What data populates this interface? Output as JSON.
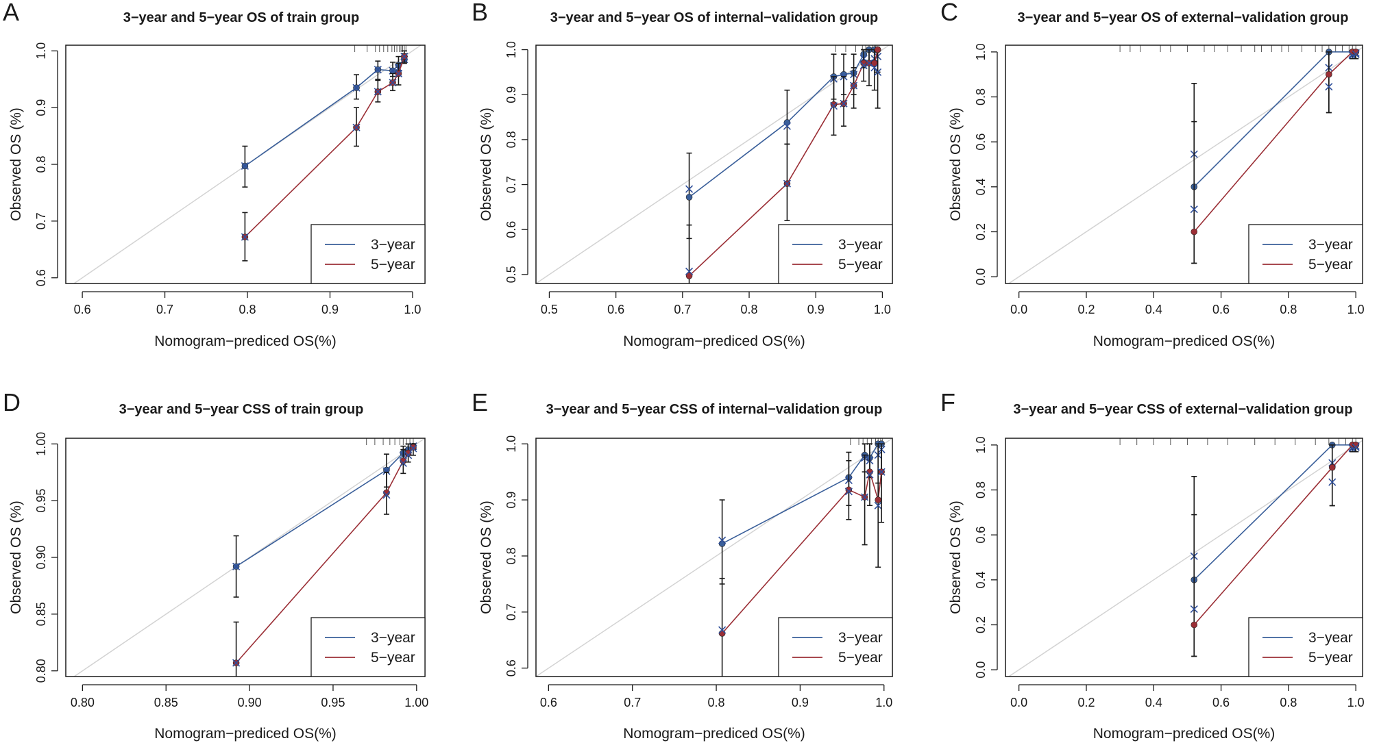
{
  "figure": {
    "colors": {
      "year3": "#3a5f9a",
      "year5": "#9b2f36",
      "ideal": "#d3d3d3",
      "errorbar": "#1a1a1a",
      "frame": "#1a1a1a"
    }
  },
  "chart_data": [
    {
      "id": "A",
      "label": "A",
      "type": "line",
      "title": "3−year and 5−year OS of train group",
      "xlabel": "Nomogram−prediced OS(%)",
      "ylabel": "Observed OS (%)",
      "xlim": [
        0.58,
        1.015
      ],
      "ylim": [
        0.59,
        1.01
      ],
      "xticks": [
        0.6,
        0.7,
        0.8,
        0.9,
        1.0
      ],
      "xtick_labels": [
        "0.6",
        "0.7",
        "0.8",
        "0.9",
        "1.0"
      ],
      "yticks": [
        0.6,
        0.7,
        0.8,
        0.9,
        1.0
      ],
      "ytick_labels": [
        "0.6",
        "0.7",
        "0.8",
        "0.9",
        "1.0"
      ],
      "legend": [
        "3−year",
        "5−year"
      ],
      "legend_position": "bottom-right",
      "rug": [
        0.93,
        0.945,
        0.955,
        0.96,
        0.965,
        0.97,
        0.975,
        0.978,
        0.981,
        0.984,
        0.986,
        0.988,
        0.99,
        0.992
      ],
      "series": [
        {
          "name": "3−year",
          "x": [
            0.797,
            0.932,
            0.958,
            0.976,
            0.983,
            0.99
          ],
          "y": [
            0.797,
            0.935,
            0.967,
            0.965,
            0.975,
            0.985
          ],
          "lo": [
            0.76,
            0.915,
            0.95,
            0.955,
            0.965,
            0.978
          ],
          "hi": [
            0.832,
            0.958,
            0.982,
            0.98,
            0.99,
            0.995
          ],
          "x_obs": [
            0.797,
            0.932,
            0.958,
            0.976,
            0.983,
            0.99
          ],
          "y_obs": [
            0.797,
            0.935,
            0.967,
            0.965,
            0.97,
            0.985
          ]
        },
        {
          "name": "5−year",
          "x": [
            0.797,
            0.932,
            0.958,
            0.976,
            0.983,
            0.99
          ],
          "y": [
            0.672,
            0.865,
            0.928,
            0.944,
            0.96,
            0.99
          ],
          "lo": [
            0.63,
            0.832,
            0.91,
            0.93,
            0.94,
            0.98
          ],
          "hi": [
            0.715,
            0.9,
            0.948,
            0.96,
            0.978,
            1.0
          ],
          "x_obs": [
            0.797,
            0.932,
            0.958,
            0.976,
            0.983,
            0.99
          ],
          "y_obs": [
            0.672,
            0.865,
            0.928,
            0.944,
            0.96,
            0.99
          ]
        }
      ]
    },
    {
      "id": "B",
      "label": "B",
      "type": "line",
      "title": "3−year and 5−year OS of internal−validation group",
      "xlabel": "Nomogram−prediced OS(%)",
      "ylabel": "Observed OS (%)",
      "xlim": [
        0.48,
        1.015
      ],
      "ylim": [
        0.48,
        1.01
      ],
      "xticks": [
        0.5,
        0.6,
        0.7,
        0.8,
        0.9,
        1.0
      ],
      "xtick_labels": [
        "0.5",
        "0.6",
        "0.7",
        "0.8",
        "0.9",
        "1.0"
      ],
      "yticks": [
        0.5,
        0.6,
        0.7,
        0.8,
        0.9,
        1.0
      ],
      "ytick_labels": [
        "0.5",
        "0.6",
        "0.7",
        "0.8",
        "0.9",
        "1.0"
      ],
      "legend": [
        "3−year",
        "5−year"
      ],
      "legend_position": "bottom-right",
      "rug": [
        0.93,
        0.945,
        0.96,
        0.97,
        0.975,
        0.98,
        0.985,
        0.988,
        0.99,
        0.992,
        0.995
      ],
      "series": [
        {
          "name": "3−year",
          "x": [
            0.71,
            0.857,
            0.927,
            0.942,
            0.957,
            0.972,
            0.98,
            0.988,
            0.993
          ],
          "y": [
            0.672,
            0.838,
            0.94,
            0.945,
            0.948,
            0.99,
            1.0,
            1.0,
            1.0
          ],
          "lo": [
            0.58,
            0.79,
            0.89,
            0.9,
            0.9,
            0.96,
            0.97,
            0.97,
            0.95
          ],
          "hi": [
            0.77,
            0.91,
            0.99,
            0.99,
            0.99,
            1.0,
            1.0,
            1.0,
            1.0
          ],
          "x_obs": [
            0.71,
            0.857,
            0.927,
            0.942,
            0.957,
            0.972,
            0.98,
            0.988,
            0.993
          ],
          "y_obs": [
            0.69,
            0.83,
            0.935,
            0.94,
            0.945,
            0.98,
            0.97,
            0.98,
            0.985
          ]
        },
        {
          "name": "5−year",
          "x": [
            0.71,
            0.857,
            0.927,
            0.942,
            0.957,
            0.972,
            0.98,
            0.988,
            0.993
          ],
          "y": [
            0.497,
            0.702,
            0.878,
            0.88,
            0.92,
            0.97,
            0.97,
            0.97,
            1.0
          ],
          "lo": [
            0.4,
            0.62,
            0.81,
            0.83,
            0.87,
            0.93,
            0.92,
            0.91,
            0.87
          ],
          "hi": [
            0.61,
            0.79,
            0.94,
            0.94,
            0.96,
            1.0,
            1.0,
            1.0,
            1.0
          ],
          "x_obs": [
            0.71,
            0.857,
            0.927,
            0.942,
            0.957,
            0.972,
            0.98,
            0.988,
            0.993
          ],
          "y_obs": [
            0.507,
            0.702,
            0.875,
            0.88,
            0.92,
            0.965,
            0.97,
            0.96,
            0.95
          ]
        }
      ]
    },
    {
      "id": "C",
      "label": "C",
      "type": "line",
      "title": "3−year and 5−year OS of external−validation group",
      "xlabel": "Nomogram−prediced OS(%)",
      "ylabel": "Observed OS (%)",
      "xlim": [
        -0.04,
        1.02
      ],
      "ylim": [
        -0.03,
        1.03
      ],
      "xticks": [
        0.0,
        0.2,
        0.4,
        0.6,
        0.8,
        1.0
      ],
      "xtick_labels": [
        "0.0",
        "0.2",
        "0.4",
        "0.6",
        "0.8",
        "1.0"
      ],
      "yticks": [
        0.0,
        0.2,
        0.4,
        0.6,
        0.8,
        1.0
      ],
      "ytick_labels": [
        "0.0",
        "0.2",
        "0.4",
        "0.6",
        "0.8",
        "1.0"
      ],
      "legend": [
        "3−year",
        "5−year"
      ],
      "legend_position": "bottom-right",
      "rug": [
        0.3,
        0.33,
        0.36,
        0.42,
        0.45,
        0.5,
        0.55,
        0.58,
        0.62,
        0.66,
        0.7,
        0.72,
        0.75,
        0.78,
        0.8,
        0.84,
        0.88,
        0.9,
        0.92,
        0.94,
        0.96,
        0.98,
        0.99,
        1.0
      ],
      "series": [
        {
          "name": "3−year",
          "x": [
            0.52,
            0.92,
            0.99,
            1.0
          ],
          "y": [
            0.4,
            1.0,
            1.0,
            1.0
          ],
          "lo": [
            0.06,
            0.73,
            0.97,
            0.97
          ],
          "hi": [
            0.86,
            1.0,
            1.0,
            1.0
          ],
          "x_obs": [
            0.52,
            0.92,
            0.99,
            1.0
          ],
          "y_obs": [
            0.545,
            0.93,
            0.99,
            0.995
          ]
        },
        {
          "name": "5−year",
          "x": [
            0.52,
            0.92,
            0.99,
            1.0
          ],
          "y": [
            0.2,
            0.9,
            1.0,
            1.0
          ],
          "lo": [
            0.06,
            0.73,
            0.97,
            0.97
          ],
          "hi": [
            0.69,
            1.0,
            1.0,
            1.0
          ],
          "x_obs": [
            0.52,
            0.92,
            0.99,
            1.0
          ],
          "y_obs": [
            0.3,
            0.845,
            0.985,
            0.99
          ]
        }
      ]
    },
    {
      "id": "D",
      "label": "D",
      "type": "line",
      "title": "3−year and 5−year CSS of train group",
      "xlabel": "Nomogram−prediced OS(%)",
      "ylabel": "Observed OS (%)",
      "xlim": [
        0.79,
        1.005
      ],
      "ylim": [
        0.795,
        1.005
      ],
      "xticks": [
        0.8,
        0.85,
        0.9,
        0.95,
        1.0
      ],
      "xtick_labels": [
        "0.80",
        "0.85",
        "0.90",
        "0.95",
        "1.00"
      ],
      "yticks": [
        0.8,
        0.85,
        0.9,
        0.95,
        1.0
      ],
      "ytick_labels": [
        "0.80",
        "0.85",
        "0.90",
        "0.95",
        "1.00"
      ],
      "legend": [
        "3−year",
        "5−year"
      ],
      "legend_position": "bottom-right",
      "rug": [
        0.97,
        0.975,
        0.98,
        0.984,
        0.987,
        0.99,
        0.992,
        0.994,
        0.996,
        0.998
      ],
      "series": [
        {
          "name": "3−year",
          "x": [
            0.892,
            0.982,
            0.992,
            0.995,
            0.998
          ],
          "y": [
            0.892,
            0.977,
            0.992,
            0.995,
            0.998
          ],
          "lo": [
            0.865,
            0.962,
            0.984,
            0.99,
            0.995
          ],
          "hi": [
            0.919,
            0.991,
            0.998,
            1.0,
            1.0
          ],
          "x_obs": [
            0.892,
            0.982,
            0.992,
            0.995,
            0.998
          ],
          "y_obs": [
            0.892,
            0.976,
            0.99,
            0.993,
            0.998
          ]
        },
        {
          "name": "5−year",
          "x": [
            0.892,
            0.982,
            0.992,
            0.995,
            0.998
          ],
          "y": [
            0.807,
            0.957,
            0.985,
            0.992,
            0.997
          ],
          "lo": [
            0.77,
            0.938,
            0.974,
            0.984,
            0.99
          ],
          "hi": [
            0.843,
            0.975,
            0.995,
            1.0,
            1.0
          ],
          "x_obs": [
            0.892,
            0.982,
            0.992,
            0.995,
            0.998
          ],
          "y_obs": [
            0.807,
            0.955,
            0.983,
            0.99,
            0.996
          ]
        }
      ]
    },
    {
      "id": "E",
      "label": "E",
      "type": "line",
      "title": "3−year and 5−year CSS of internal−validation group",
      "xlabel": "Nomogram−prediced OS(%)",
      "ylabel": "Observed OS (%)",
      "xlim": [
        0.585,
        1.01
      ],
      "ylim": [
        0.585,
        1.01
      ],
      "xticks": [
        0.6,
        0.7,
        0.8,
        0.9,
        1.0
      ],
      "xtick_labels": [
        "0.6",
        "0.7",
        "0.8",
        "0.9",
        "1.0"
      ],
      "yticks": [
        0.6,
        0.7,
        0.8,
        0.9,
        1.0
      ],
      "ytick_labels": [
        "0.6",
        "0.7",
        "0.8",
        "0.9",
        "1.0"
      ],
      "legend": [
        "3−year",
        "5−year"
      ],
      "legend_position": "bottom-right",
      "rug": [
        0.96,
        0.97,
        0.975,
        0.98,
        0.985,
        0.99,
        0.993,
        0.996,
        0.998
      ],
      "series": [
        {
          "name": "3−year",
          "x": [
            0.807,
            0.958,
            0.977,
            0.983,
            0.993,
            0.997
          ],
          "y": [
            0.822,
            0.94,
            0.98,
            0.975,
            1.0,
            1.0
          ],
          "lo": [
            0.75,
            0.89,
            0.95,
            0.94,
            0.93,
            0.95
          ],
          "hi": [
            0.9,
            0.985,
            1.0,
            1.0,
            1.0,
            1.0
          ],
          "x_obs": [
            0.807,
            0.958,
            0.977,
            0.983,
            0.993,
            0.997
          ],
          "y_obs": [
            0.828,
            0.935,
            0.975,
            0.97,
            0.98,
            0.99
          ]
        },
        {
          "name": "5−year",
          "x": [
            0.807,
            0.958,
            0.977,
            0.983,
            0.993,
            0.997
          ],
          "y": [
            0.662,
            0.918,
            0.905,
            0.95,
            0.9,
            0.95
          ],
          "lo": [
            0.58,
            0.865,
            0.82,
            0.89,
            0.78,
            0.86
          ],
          "hi": [
            0.76,
            0.97,
            0.98,
            1.0,
            1.0,
            1.0
          ],
          "x_obs": [
            0.807,
            0.958,
            0.977,
            0.983,
            0.993,
            0.997
          ],
          "y_obs": [
            0.668,
            0.915,
            0.905,
            0.945,
            0.89,
            0.95
          ]
        }
      ]
    },
    {
      "id": "F",
      "label": "F",
      "type": "line",
      "title": "3−year and 5−year CSS of external−validation group",
      "xlabel": "Nomogram−prediced OS(%)",
      "ylabel": "Observed OS (%)",
      "xlim": [
        -0.04,
        1.02
      ],
      "ylim": [
        -0.03,
        1.03
      ],
      "xticks": [
        0.0,
        0.2,
        0.4,
        0.6,
        0.8,
        1.0
      ],
      "xtick_labels": [
        "0.0",
        "0.2",
        "0.4",
        "0.6",
        "0.8",
        "1.0"
      ],
      "yticks": [
        0.0,
        0.2,
        0.4,
        0.6,
        0.8,
        1.0
      ],
      "ytick_labels": [
        "0.0",
        "0.2",
        "0.4",
        "0.6",
        "0.8",
        "1.0"
      ],
      "legend": [
        "3−year",
        "5−year"
      ],
      "legend_position": "bottom-right",
      "rug": [
        0.3,
        0.35,
        0.4,
        0.45,
        0.5,
        0.56,
        0.62,
        0.7,
        0.76,
        0.82,
        0.88,
        0.92,
        0.95,
        0.97,
        0.99,
        1.0
      ],
      "series": [
        {
          "name": "3−year",
          "x": [
            0.52,
            0.93,
            0.99,
            1.0
          ],
          "y": [
            0.4,
            1.0,
            1.0,
            1.0
          ],
          "lo": [
            0.06,
            0.73,
            0.97,
            0.97
          ],
          "hi": [
            0.86,
            1.0,
            1.0,
            1.0
          ],
          "x_obs": [
            0.52,
            0.93,
            0.99,
            1.0
          ],
          "y_obs": [
            0.505,
            0.92,
            0.99,
            0.995
          ]
        },
        {
          "name": "5−year",
          "x": [
            0.52,
            0.93,
            0.99,
            1.0
          ],
          "y": [
            0.2,
            0.9,
            1.0,
            1.0
          ],
          "lo": [
            0.06,
            0.73,
            0.97,
            0.97
          ],
          "hi": [
            0.69,
            1.0,
            1.0,
            1.0
          ],
          "x_obs": [
            0.52,
            0.93,
            0.99,
            1.0
          ],
          "y_obs": [
            0.27,
            0.835,
            0.985,
            0.99
          ]
        }
      ]
    }
  ]
}
